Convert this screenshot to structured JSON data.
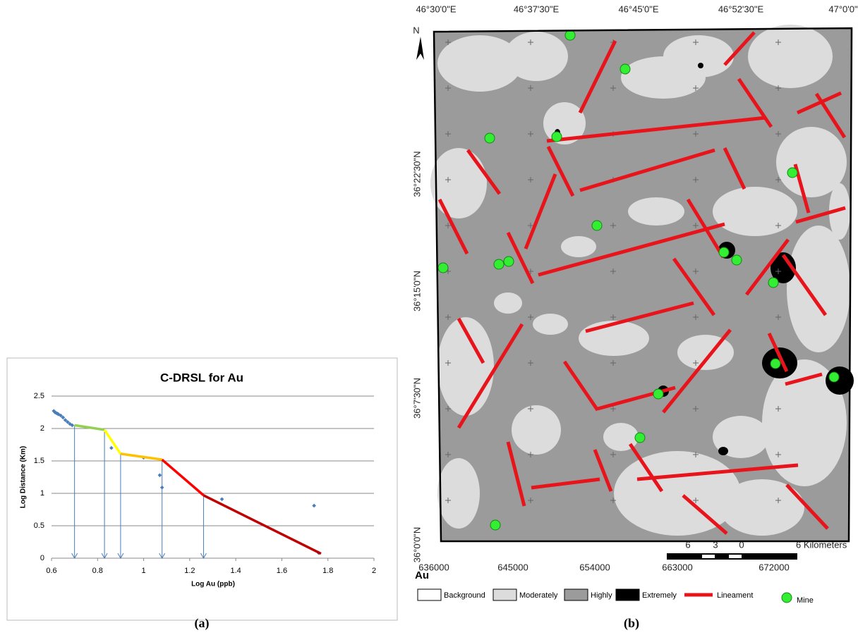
{
  "chart_data": {
    "type": "scatter",
    "title": "C-DRSL for Au",
    "x_label": "Log Au (ppb)",
    "y_label": "Log Distance (Km)",
    "xlim": [
      0.6,
      2
    ],
    "xticks": [
      0.6,
      0.8,
      1,
      1.2,
      1.4,
      1.6,
      1.8,
      2
    ],
    "ylim": [
      0,
      2.5
    ],
    "yticks": [
      0,
      0.5,
      1,
      1.5,
      2,
      2.5
    ],
    "grid": true,
    "series": [
      {
        "type": "scatter",
        "color": "#4a7ebb",
        "x": [
          0.61,
          0.615,
          0.62,
          0.625,
          0.63,
          0.64,
          0.65,
          0.66,
          0.67,
          0.68,
          0.69,
          0.86,
          1.0,
          1.07,
          1.08,
          1.34,
          1.74,
          1.76
        ],
        "values": [
          2.27,
          2.25,
          2.24,
          2.23,
          2.22,
          2.2,
          2.17,
          2.13,
          2.1,
          2.07,
          2.05,
          1.7,
          1.55,
          1.28,
          1.09,
          0.91,
          0.81,
          0.08
        ]
      },
      {
        "type": "line",
        "color": "#92d050",
        "x": [
          0.7,
          0.83
        ],
        "values": [
          2.05,
          1.98
        ]
      },
      {
        "type": "line",
        "color": "#ffff00",
        "x": [
          0.83,
          0.9
        ],
        "values": [
          1.98,
          1.61
        ]
      },
      {
        "type": "line",
        "color": "#ffc000",
        "x": [
          0.9,
          1.08
        ],
        "values": [
          1.61,
          1.52
        ]
      },
      {
        "type": "line",
        "color": "#ff0000",
        "x": [
          1.08,
          1.26
        ],
        "values": [
          1.52,
          0.97
        ]
      },
      {
        "type": "line",
        "color": "#c00000",
        "x": [
          1.26,
          1.77
        ],
        "values": [
          0.97,
          0.07
        ]
      }
    ],
    "thresholds": [
      0.7,
      0.83,
      0.9,
      1.08,
      1.26
    ],
    "threshold_levels": [
      2.05,
      1.98,
      1.61,
      1.52,
      0.97
    ],
    "threshold_color": "#4a7ebb"
  },
  "map": {
    "north": "N",
    "element": "Au",
    "top_labels": [
      "46°30'0\"E",
      "46°37'30\"E",
      "46°45'0\"E",
      "46°52'30\"E",
      "47°0'0\""
    ],
    "left_labels": [
      "N",
      "36°22'30\"N",
      "36°15'0\"N",
      "36°7'30\"N",
      "36°0'0\"N"
    ],
    "bottom_labels": [
      "636000",
      "645000",
      "654000",
      "663000",
      "672000"
    ],
    "scale_labels": [
      "6",
      "3",
      "0",
      "6 Kilometers"
    ],
    "legend": [
      "Background",
      "Moderately",
      "Highly",
      "Extremely",
      "Lineament",
      "Mine"
    ]
  },
  "captions": [
    "(a)",
    "(b)"
  ]
}
